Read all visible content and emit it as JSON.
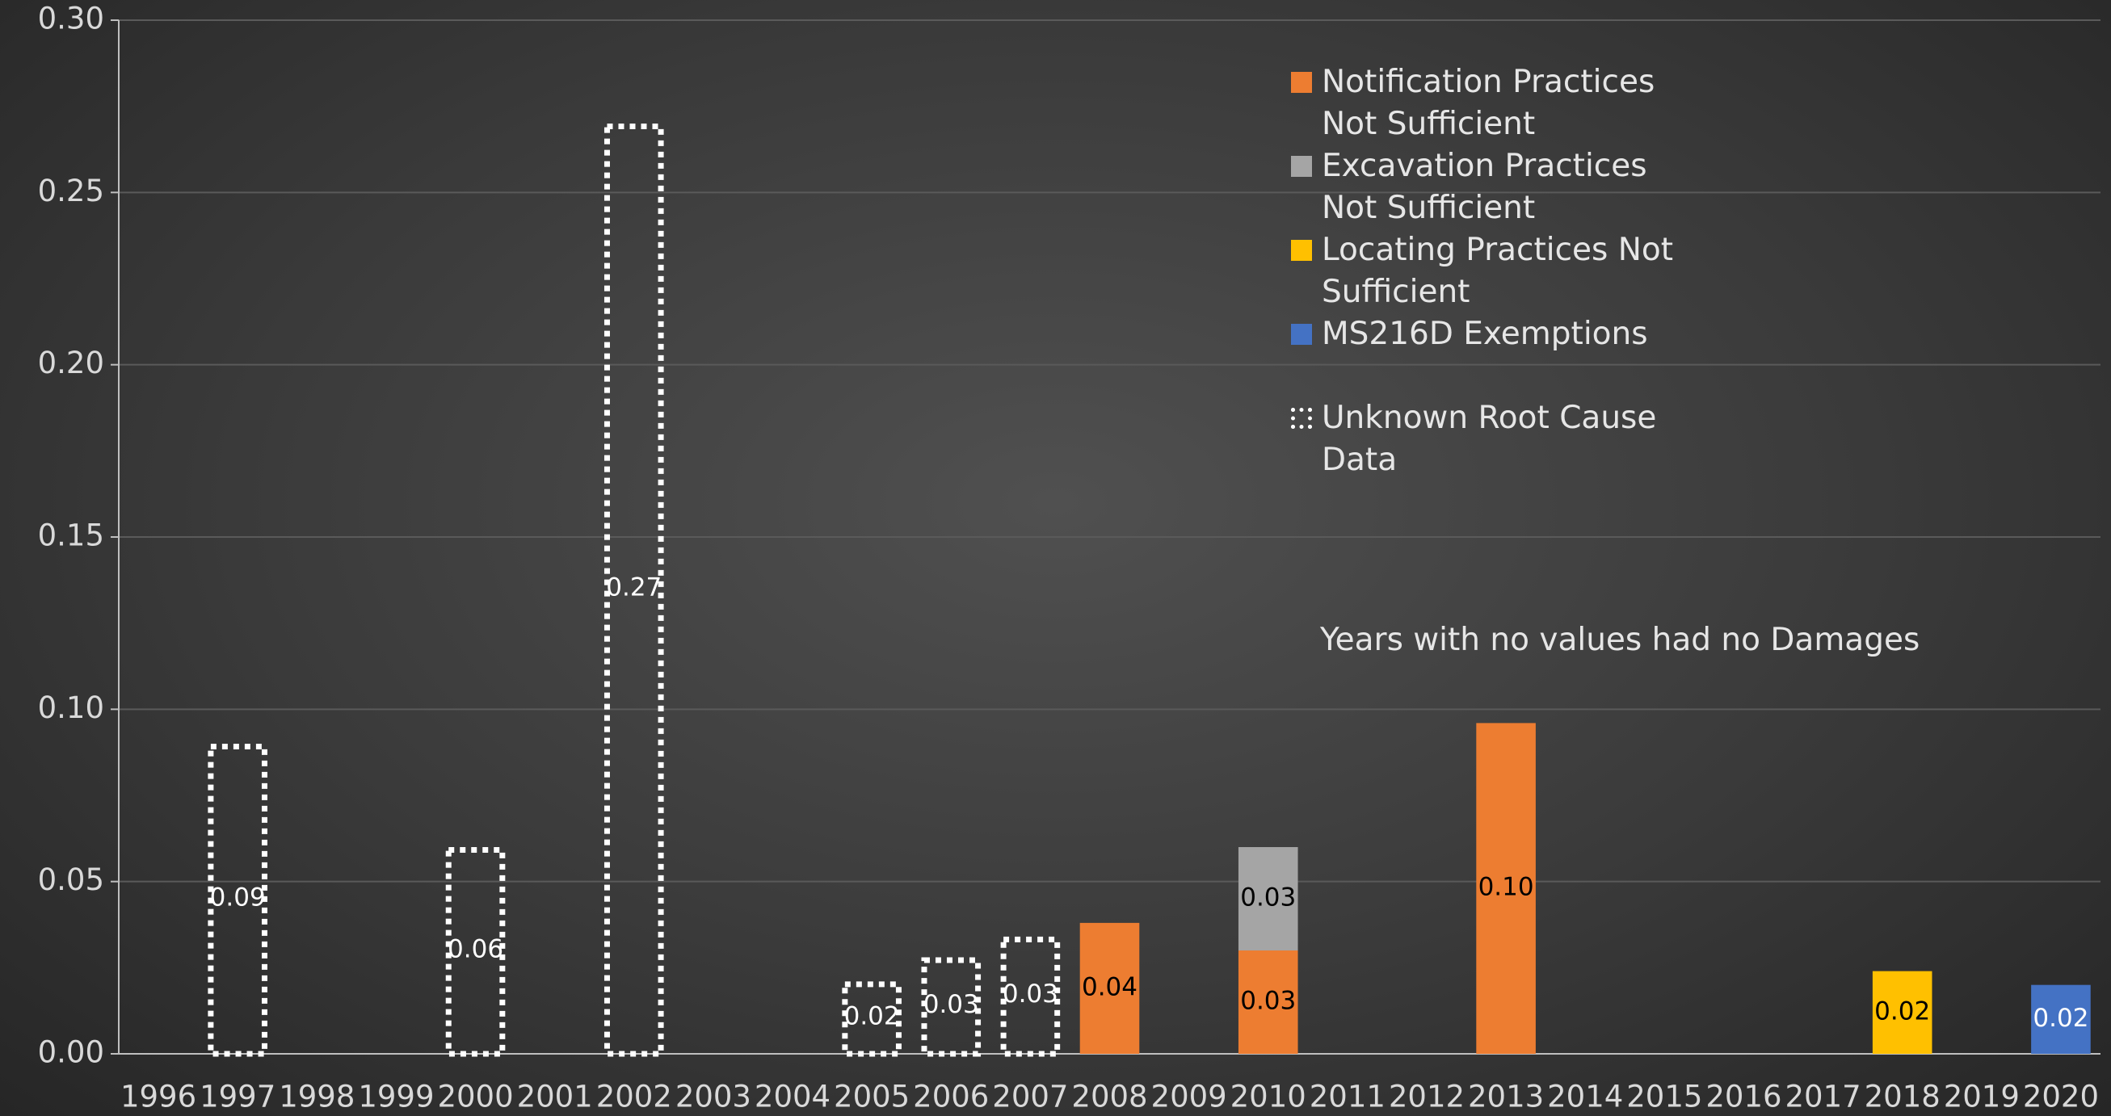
{
  "chart_data": {
    "type": "stacked-bar",
    "annotation": "Years with no values had no Damages",
    "categories": [
      "1996",
      "1997",
      "1998",
      "1999",
      "2000",
      "2001",
      "2002",
      "2003",
      "2004",
      "2005",
      "2006",
      "2007",
      "2008",
      "2009",
      "2010",
      "2011",
      "2012",
      "2013",
      "2014",
      "2015",
      "2016",
      "2017",
      "2018",
      "2019",
      "2020"
    ],
    "series": [
      {
        "name": "Notification Practices Not Sufficient",
        "color": "#ed7d31",
        "style": "solid",
        "label_color": "#000000",
        "values": [
          null,
          null,
          null,
          null,
          null,
          null,
          null,
          null,
          null,
          null,
          null,
          null,
          0.038,
          null,
          0.03,
          null,
          null,
          0.096,
          null,
          null,
          null,
          null,
          null,
          null,
          null
        ],
        "value_labels": [
          null,
          null,
          null,
          null,
          null,
          null,
          null,
          null,
          null,
          null,
          null,
          null,
          "0.04",
          null,
          "0.03",
          null,
          null,
          "0.10",
          null,
          null,
          null,
          null,
          null,
          null,
          null
        ]
      },
      {
        "name": "Excavation Practices Not Sufficient",
        "color": "#a5a5a5",
        "style": "solid",
        "label_color": "#000000",
        "values": [
          null,
          null,
          null,
          null,
          null,
          null,
          null,
          null,
          null,
          null,
          null,
          null,
          null,
          null,
          0.03,
          null,
          null,
          null,
          null,
          null,
          null,
          null,
          null,
          null,
          null
        ],
        "value_labels": [
          null,
          null,
          null,
          null,
          null,
          null,
          null,
          null,
          null,
          null,
          null,
          null,
          null,
          null,
          "0.03",
          null,
          null,
          null,
          null,
          null,
          null,
          null,
          null,
          null,
          null
        ]
      },
      {
        "name": "Locating Practices Not Sufficient",
        "color": "#ffc000",
        "style": "solid",
        "label_color": "#000000",
        "values": [
          null,
          null,
          null,
          null,
          null,
          null,
          null,
          null,
          null,
          null,
          null,
          null,
          null,
          null,
          null,
          null,
          null,
          null,
          null,
          null,
          null,
          null,
          0.024,
          null,
          null
        ],
        "value_labels": [
          null,
          null,
          null,
          null,
          null,
          null,
          null,
          null,
          null,
          null,
          null,
          null,
          null,
          null,
          null,
          null,
          null,
          null,
          null,
          null,
          null,
          null,
          "0.02",
          null,
          null
        ]
      },
      {
        "name": "MS216D Exemptions",
        "color": "#4472c4",
        "style": "solid",
        "label_color": "#ffffff",
        "values": [
          null,
          null,
          null,
          null,
          null,
          null,
          null,
          null,
          null,
          null,
          null,
          null,
          null,
          null,
          null,
          null,
          null,
          null,
          null,
          null,
          null,
          null,
          null,
          null,
          0.02
        ],
        "value_labels": [
          null,
          null,
          null,
          null,
          null,
          null,
          null,
          null,
          null,
          null,
          null,
          null,
          null,
          null,
          null,
          null,
          null,
          null,
          null,
          null,
          null,
          null,
          null,
          null,
          "0.02"
        ]
      },
      {
        "name": "Unknown Root Cause Data",
        "color": "#ffffff",
        "style": "dotted",
        "label_color": "#ffffff",
        "values": [
          null,
          0.09,
          null,
          null,
          0.06,
          null,
          0.27,
          null,
          null,
          0.021,
          0.028,
          0.034,
          null,
          null,
          null,
          null,
          null,
          null,
          null,
          null,
          null,
          null,
          null,
          null,
          null
        ],
        "value_labels": [
          null,
          "0.09",
          null,
          null,
          "0.06",
          null,
          "0.27",
          null,
          null,
          "0.02",
          "0.03",
          "0.03",
          null,
          null,
          null,
          null,
          null,
          null,
          null,
          null,
          null,
          null,
          null,
          null,
          null
        ]
      }
    ],
    "ylim": [
      0,
      0.3
    ],
    "yticks": [
      {
        "value": 0,
        "label": "0.00"
      },
      {
        "value": 0.05,
        "label": "0.05"
      },
      {
        "value": 0.1,
        "label": "0.10"
      },
      {
        "value": 0.15,
        "label": "0.15"
      },
      {
        "value": 0.2,
        "label": "0.20"
      },
      {
        "value": 0.25,
        "label": "0.25"
      },
      {
        "value": 0.3,
        "label": "0.30"
      }
    ],
    "grid": true
  }
}
